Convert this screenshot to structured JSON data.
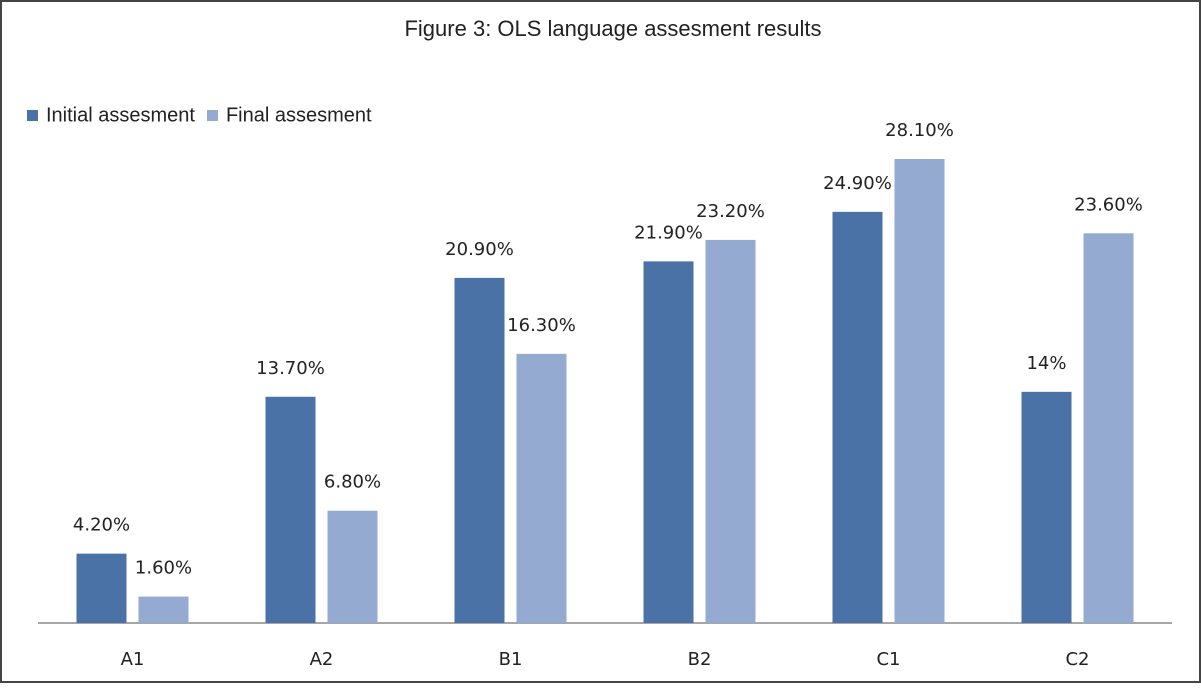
{
  "chart_data": {
    "type": "bar",
    "title": "Figure 3: OLS language assesment results",
    "categories": [
      "A1",
      "A2",
      "B1",
      "B2",
      "C1",
      "C2"
    ],
    "series": [
      {
        "name": "Initial assesment",
        "color": "#4a72a6",
        "values": [
          4.2,
          13.7,
          20.9,
          21.9,
          24.9,
          14
        ],
        "value_labels": [
          "4.20%",
          "13.70%",
          "20.90%",
          "21.90%",
          "24.90%",
          "14%"
        ]
      },
      {
        "name": "Final assesment",
        "color": "#94aad1",
        "values": [
          1.6,
          6.8,
          16.3,
          23.2,
          28.1,
          23.6
        ],
        "value_labels": [
          "1.60%",
          "6.80%",
          "16.30%",
          "23.20%",
          "28.10%",
          "23.60%"
        ]
      }
    ],
    "legend": "top-left"
  }
}
